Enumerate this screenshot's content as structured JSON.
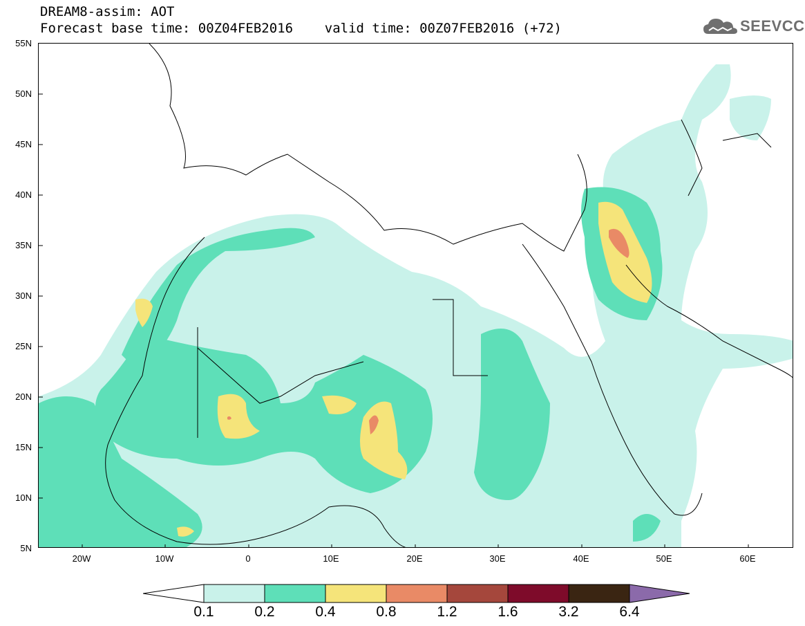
{
  "header": {
    "title": "DREAM8-assim: AOT",
    "forecast_line": "Forecast base time: 00Z04FEB2016    valid time: 00Z07FEB2016 (+72)"
  },
  "logo": {
    "text": "SEEVCCC",
    "icon": "cloud-logo-icon"
  },
  "map": {
    "lat_labels": [
      "55N",
      "50N",
      "45N",
      "40N",
      "35N",
      "30N",
      "25N",
      "20N",
      "15N",
      "10N",
      "5N"
    ],
    "lon_labels": [
      "20W",
      "10W",
      "0",
      "10E",
      "20E",
      "30E",
      "40E",
      "50E",
      "60E"
    ]
  },
  "colorbar": {
    "labels": [
      "0.1",
      "0.2",
      "0.4",
      "0.8",
      "1.2",
      "1.6",
      "3.2",
      "6.4"
    ],
    "colors": [
      "#c9f2ea",
      "#5edfb8",
      "#f5e47a",
      "#e98a66",
      "#a5473c",
      "#7e0b2a",
      "#3a2512",
      "#8b6aaa"
    ]
  }
}
